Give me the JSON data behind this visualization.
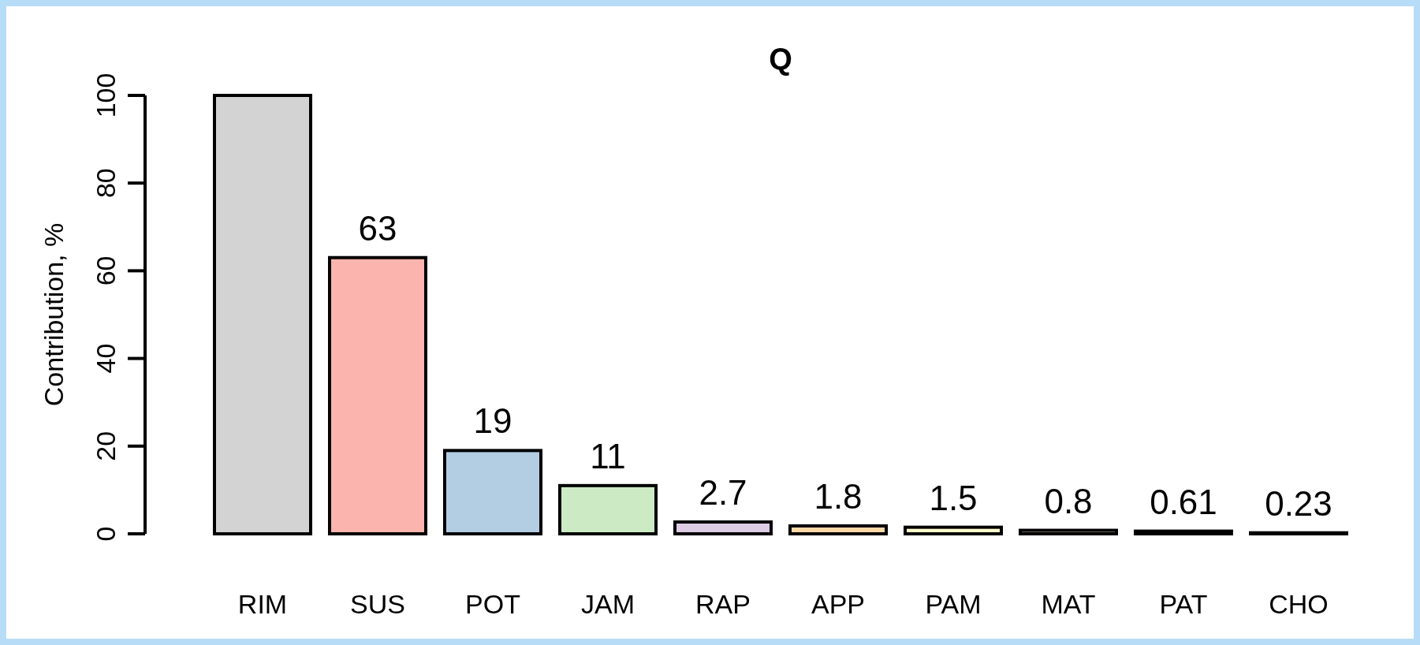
{
  "chart_data": {
    "type": "bar",
    "title": "Q",
    "ylabel": "Contribution, %",
    "categories": [
      "RIM",
      "SUS",
      "POT",
      "JAM",
      "RAP",
      "APP",
      "PAM",
      "MAT",
      "PAT",
      "CHO"
    ],
    "values": [
      100,
      63,
      19,
      11,
      2.7,
      1.8,
      1.5,
      0.8,
      0.61,
      0.23
    ],
    "colors": [
      "#d3d3d3",
      "#fbb4ae",
      "#b3cde3",
      "#ccebc5",
      "#decbe4",
      "#fed9a6",
      "#ffffcc",
      "#e5d8bd",
      "#fddaec",
      "#f2f2f2"
    ],
    "value_labels": [
      null,
      "63",
      "19",
      "11",
      "2.7",
      "1.8",
      "1.5",
      "0.8",
      "0.61",
      "0.23"
    ],
    "ylim": [
      0,
      100
    ],
    "yticks": [
      0,
      20,
      40,
      60,
      80,
      100
    ]
  }
}
